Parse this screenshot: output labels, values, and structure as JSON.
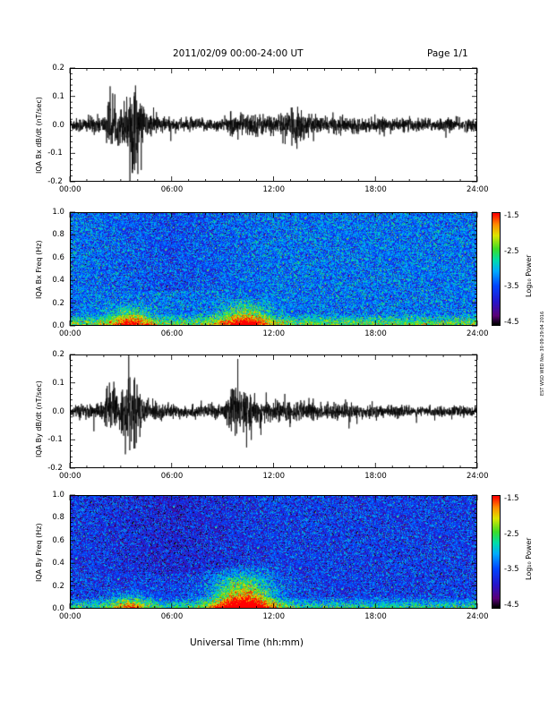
{
  "header": {
    "title": "2011/02/09  00:00-24:00 UT",
    "page": "Page 1/1"
  },
  "footer": {
    "xlabel": "Universal Time (hh:mm)"
  },
  "side_stamp": "EST WSD WED Nov 30 09:29:04 2016",
  "time_ticks": [
    "00:00",
    "06:00",
    "12:00",
    "18:00",
    "24:00"
  ],
  "chart_data": [
    {
      "type": "line",
      "ylabel": "IQA Bx dB/dt (nT/sec)",
      "xlabel": "Universal Time (hh:mm)",
      "xlim_hours": [
        0,
        24
      ],
      "ylim": [
        -0.2,
        0.2
      ],
      "yticks": [
        "0.2",
        "0.1",
        "0.0",
        "-0.1",
        "-0.2"
      ],
      "series": [
        {
          "x_hours": [
            0,
            1,
            2,
            2.3,
            2.5,
            3,
            3.4,
            3.6,
            3.8,
            4,
            4.5,
            6,
            8,
            9,
            9.5,
            10,
            11,
            12,
            13,
            13.5,
            14,
            15,
            16,
            18,
            20,
            22,
            24
          ],
          "amplitude_env": [
            0.02,
            0.025,
            0.03,
            0.09,
            0.05,
            0.06,
            0.1,
            0.17,
            0.13,
            0.09,
            0.04,
            0.02,
            0.02,
            0.02,
            0.03,
            0.035,
            0.035,
            0.03,
            0.04,
            0.07,
            0.03,
            0.025,
            0.025,
            0.02,
            0.02,
            0.02,
            0.02
          ]
        }
      ]
    },
    {
      "type": "heatmap",
      "ylabel": "IQA Bx Freq (Hz)",
      "xlim_hours": [
        0,
        24
      ],
      "ylim": [
        0,
        1
      ],
      "yticks": [
        "1.0",
        "0.8",
        "0.6",
        "0.4",
        "0.2",
        "0.0"
      ],
      "colorbar": {
        "label": "Log₁₀ Power",
        "ticks": [
          "-1.5",
          "-2.5",
          "-3.5",
          "-4.5"
        ],
        "range": [
          -4.5,
          -1.5
        ]
      },
      "enhancements": [
        {
          "t_hours": 3.5,
          "width_hours": 1.2,
          "fmax_hz": 0.12
        },
        {
          "t_hours": 10.3,
          "width_hours": 1.5,
          "fmax_hz": 0.14
        }
      ],
      "background_power": -3.3
    },
    {
      "type": "line",
      "ylabel": "IQA By dB/dt (nT/sec)",
      "xlabel": "Universal Time (hh:mm)",
      "xlim_hours": [
        0,
        24
      ],
      "ylim": [
        -0.2,
        0.2
      ],
      "yticks": [
        "0.2",
        "0.1",
        "0.0",
        "-0.1",
        "-0.2"
      ],
      "series": [
        {
          "x_hours": [
            0,
            1,
            2,
            2.3,
            2.5,
            3,
            3.4,
            3.6,
            3.9,
            4.3,
            6,
            8,
            9,
            9.6,
            10,
            10.5,
            11,
            12,
            13,
            14,
            15,
            16,
            18,
            20,
            22,
            24
          ],
          "amplitude_env": [
            0.02,
            0.02,
            0.03,
            0.13,
            0.05,
            0.06,
            0.12,
            0.14,
            0.08,
            0.04,
            0.02,
            0.02,
            0.02,
            0.09,
            0.07,
            0.05,
            0.04,
            0.035,
            0.03,
            0.03,
            0.025,
            0.025,
            0.02,
            0.015,
            0.015,
            0.015
          ]
        }
      ]
    },
    {
      "type": "heatmap",
      "ylabel": "IQA By Freq (Hz)",
      "xlim_hours": [
        0,
        24
      ],
      "ylim": [
        0,
        1
      ],
      "yticks": [
        "1.0",
        "0.8",
        "0.6",
        "0.4",
        "0.2",
        "0.0"
      ],
      "colorbar": {
        "label": "Log₁₀ Power",
        "ticks": [
          "-1.5",
          "-2.5",
          "-3.5",
          "-4.5"
        ],
        "range": [
          -4.5,
          -1.5
        ]
      },
      "enhancements": [
        {
          "t_hours": 3.5,
          "width_hours": 1.2,
          "fmax_hz": 0.1
        },
        {
          "t_hours": 10.2,
          "width_hours": 1.8,
          "fmax_hz": 0.22
        }
      ],
      "background_power": -3.6
    }
  ]
}
